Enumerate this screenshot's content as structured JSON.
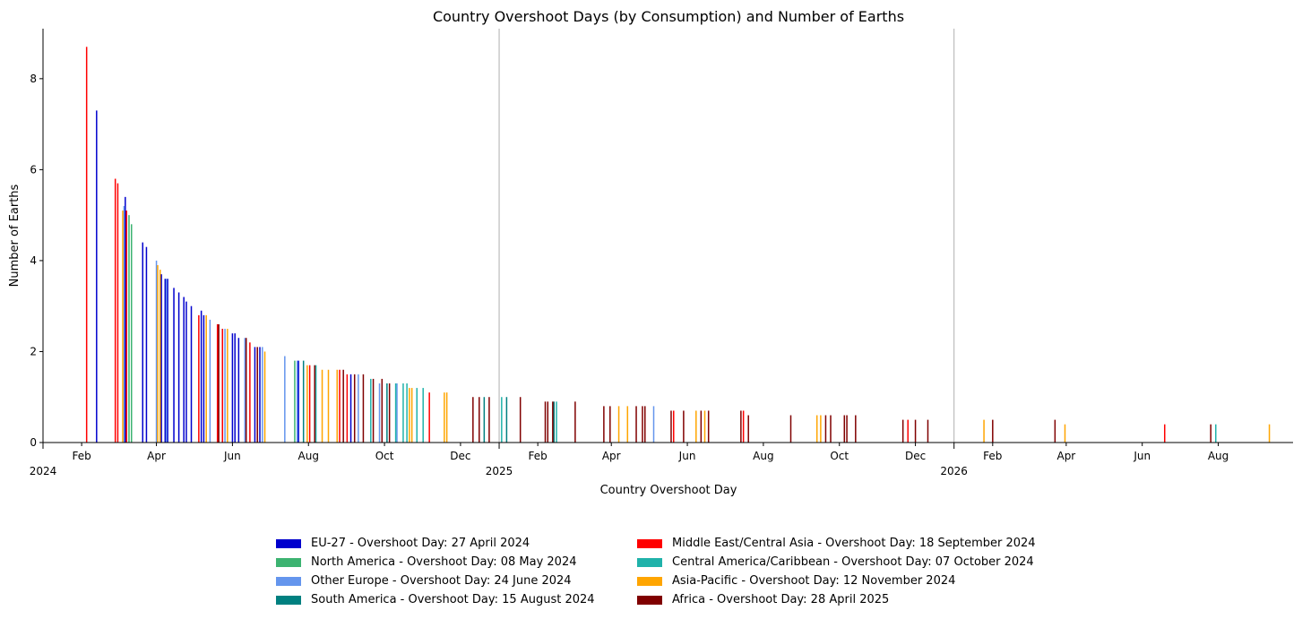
{
  "chart_data": {
    "type": "bar",
    "title": "Country Overshoot Days (by Consumption) and Number of Earths",
    "xlabel": "Country Overshoot Day",
    "ylabel": "Number of Earths",
    "xlim": [
      "2024-01-01",
      "2026-09-30"
    ],
    "ylim": [
      0,
      9.1
    ],
    "y_ticks": [
      0,
      2,
      4,
      6,
      8
    ],
    "x_ticks": [
      {
        "date": "2024-02-01",
        "label": "Feb"
      },
      {
        "date": "2024-04-01",
        "label": "Apr"
      },
      {
        "date": "2024-06-01",
        "label": "Jun"
      },
      {
        "date": "2024-08-01",
        "label": "Aug"
      },
      {
        "date": "2024-10-01",
        "label": "Oct"
      },
      {
        "date": "2024-12-01",
        "label": "Dec"
      },
      {
        "date": "2025-02-01",
        "label": "Feb"
      },
      {
        "date": "2025-04-01",
        "label": "Apr"
      },
      {
        "date": "2025-06-01",
        "label": "Jun"
      },
      {
        "date": "2025-08-01",
        "label": "Aug"
      },
      {
        "date": "2025-10-01",
        "label": "Oct"
      },
      {
        "date": "2025-12-01",
        "label": "Dec"
      },
      {
        "date": "2026-02-01",
        "label": "Feb"
      },
      {
        "date": "2026-04-01",
        "label": "Apr"
      },
      {
        "date": "2026-06-01",
        "label": "Jun"
      },
      {
        "date": "2026-08-01",
        "label": "Aug"
      }
    ],
    "year_labels": [
      {
        "date": "2024-01-01",
        "label": "2024"
      },
      {
        "date": "2025-01-01",
        "label": "2025"
      },
      {
        "date": "2026-01-01",
        "label": "2026"
      }
    ],
    "year_lines": [
      "2025-01-01",
      "2026-01-01"
    ],
    "legend_placement": "bottom-center",
    "series": [
      {
        "name": "EU-27 - Overshoot Day: 27 April 2024",
        "color": "#0000cd",
        "points": [
          {
            "x": "2024-02-13",
            "y": 7.3
          },
          {
            "x": "2024-03-07",
            "y": 5.4
          },
          {
            "x": "2024-03-21",
            "y": 4.4
          },
          {
            "x": "2024-03-24",
            "y": 4.3
          },
          {
            "x": "2024-04-05",
            "y": 3.7
          },
          {
            "x": "2024-04-08",
            "y": 3.6
          },
          {
            "x": "2024-04-10",
            "y": 3.6
          },
          {
            "x": "2024-04-15",
            "y": 3.4
          },
          {
            "x": "2024-04-19",
            "y": 3.3
          },
          {
            "x": "2024-04-23",
            "y": 3.2
          },
          {
            "x": "2024-04-25",
            "y": 3.1
          },
          {
            "x": "2024-04-29",
            "y": 3.0
          },
          {
            "x": "2024-05-07",
            "y": 2.9
          },
          {
            "x": "2024-05-09",
            "y": 2.8
          },
          {
            "x": "2024-05-20",
            "y": 2.6
          },
          {
            "x": "2024-05-24",
            "y": 2.5
          },
          {
            "x": "2024-06-01",
            "y": 2.4
          },
          {
            "x": "2024-06-03",
            "y": 2.4
          },
          {
            "x": "2024-06-06",
            "y": 2.3
          },
          {
            "x": "2024-06-19",
            "y": 2.1
          },
          {
            "x": "2024-06-23",
            "y": 2.1
          },
          {
            "x": "2024-07-24",
            "y": 1.8
          },
          {
            "x": "2024-09-04",
            "y": 1.5
          }
        ]
      },
      {
        "name": "North America - Overshoot Day: 08 May 2024",
        "color": "#3cb371",
        "points": [
          {
            "x": "2024-03-10",
            "y": 5.0
          },
          {
            "x": "2024-03-12",
            "y": 4.8
          },
          {
            "x": "2024-07-21",
            "y": 1.8
          }
        ]
      },
      {
        "name": "Other Europe - Overshoot Day: 24 June 2024",
        "color": "#6495ed",
        "points": [
          {
            "x": "2024-03-06",
            "y": 5.2
          },
          {
            "x": "2024-04-01",
            "y": 4.0
          },
          {
            "x": "2024-04-09",
            "y": 3.6
          },
          {
            "x": "2024-05-14",
            "y": 2.7
          },
          {
            "x": "2024-05-26",
            "y": 2.5
          },
          {
            "x": "2024-06-11",
            "y": 2.3
          },
          {
            "x": "2024-06-25",
            "y": 2.1
          },
          {
            "x": "2024-07-13",
            "y": 1.9
          },
          {
            "x": "2024-07-23",
            "y": 1.8
          },
          {
            "x": "2024-09-10",
            "y": 1.5
          },
          {
            "x": "2024-09-27",
            "y": 1.3
          },
          {
            "x": "2024-10-11",
            "y": 1.3
          },
          {
            "x": "2025-05-05",
            "y": 0.8
          }
        ]
      },
      {
        "name": "South America - Overshoot Day: 15 August 2024",
        "color": "#008080",
        "points": [
          {
            "x": "2024-07-28",
            "y": 1.8
          },
          {
            "x": "2024-10-03",
            "y": 1.3
          },
          {
            "x": "2024-12-20",
            "y": 1.0
          },
          {
            "x": "2025-01-07",
            "y": 1.0
          },
          {
            "x": "2025-02-14",
            "y": 0.9
          }
        ]
      },
      {
        "name": "Middle East/Central Asia - Overshoot Day: 18 September 2024",
        "color": "#ff0000",
        "points": [
          {
            "x": "2024-02-05",
            "y": 8.7
          },
          {
            "x": "2024-02-28",
            "y": 5.8
          },
          {
            "x": "2024-03-01",
            "y": 5.7
          },
          {
            "x": "2024-03-08",
            "y": 5.1
          },
          {
            "x": "2024-05-05",
            "y": 2.8
          },
          {
            "x": "2024-05-20",
            "y": 2.6
          },
          {
            "x": "2024-05-24",
            "y": 2.5
          },
          {
            "x": "2024-06-15",
            "y": 2.2
          },
          {
            "x": "2024-08-02",
            "y": 1.7
          },
          {
            "x": "2024-08-26",
            "y": 1.6
          },
          {
            "x": "2024-09-01",
            "y": 1.5
          },
          {
            "x": "2024-11-06",
            "y": 1.1
          },
          {
            "x": "2025-05-21",
            "y": 0.7
          },
          {
            "x": "2025-07-16",
            "y": 0.7
          },
          {
            "x": "2025-11-25",
            "y": 0.5
          },
          {
            "x": "2026-06-19",
            "y": 0.4
          }
        ]
      },
      {
        "name": "Central America/Caribbean - Overshoot Day: 07 October 2024",
        "color": "#20b2aa",
        "points": [
          {
            "x": "2024-08-07",
            "y": 1.7
          },
          {
            "x": "2024-09-20",
            "y": 1.4
          },
          {
            "x": "2024-10-10",
            "y": 1.3
          },
          {
            "x": "2024-10-16",
            "y": 1.3
          },
          {
            "x": "2024-10-19",
            "y": 1.3
          },
          {
            "x": "2024-10-27",
            "y": 1.2
          },
          {
            "x": "2024-11-01",
            "y": 1.2
          },
          {
            "x": "2025-01-03",
            "y": 1.0
          },
          {
            "x": "2025-02-16",
            "y": 0.9
          },
          {
            "x": "2026-07-30",
            "y": 0.4
          }
        ]
      },
      {
        "name": "Asia-Pacific - Overshoot Day: 12 November 2024",
        "color": "#ffa500",
        "points": [
          {
            "x": "2024-03-05",
            "y": 5.1
          },
          {
            "x": "2024-04-02",
            "y": 3.9
          },
          {
            "x": "2024-04-04",
            "y": 3.8
          },
          {
            "x": "2024-05-11",
            "y": 2.8
          },
          {
            "x": "2024-05-28",
            "y": 2.5
          },
          {
            "x": "2024-06-27",
            "y": 2.0
          },
          {
            "x": "2024-07-31",
            "y": 1.7
          },
          {
            "x": "2024-08-12",
            "y": 1.6
          },
          {
            "x": "2024-08-17",
            "y": 1.6
          },
          {
            "x": "2024-08-24",
            "y": 1.6
          },
          {
            "x": "2024-10-21",
            "y": 1.2
          },
          {
            "x": "2024-10-23",
            "y": 1.2
          },
          {
            "x": "2024-11-18",
            "y": 1.1
          },
          {
            "x": "2024-11-20",
            "y": 1.1
          },
          {
            "x": "2025-04-07",
            "y": 0.8
          },
          {
            "x": "2025-04-14",
            "y": 0.8
          },
          {
            "x": "2025-06-08",
            "y": 0.7
          },
          {
            "x": "2025-06-15",
            "y": 0.7
          },
          {
            "x": "2025-09-13",
            "y": 0.6
          },
          {
            "x": "2025-09-16",
            "y": 0.6
          },
          {
            "x": "2026-01-25",
            "y": 0.5
          },
          {
            "x": "2026-03-31",
            "y": 0.4
          },
          {
            "x": "2026-09-11",
            "y": 0.4
          }
        ]
      },
      {
        "name": "Africa - Overshoot Day: 28 April 2025",
        "color": "#800000",
        "points": [
          {
            "x": "2024-05-21",
            "y": 2.6
          },
          {
            "x": "2024-06-12",
            "y": 2.3
          },
          {
            "x": "2024-06-21",
            "y": 2.1
          },
          {
            "x": "2024-08-06",
            "y": 1.7
          },
          {
            "x": "2024-08-29",
            "y": 1.6
          },
          {
            "x": "2024-09-07",
            "y": 1.5
          },
          {
            "x": "2024-09-14",
            "y": 1.5
          },
          {
            "x": "2024-09-22",
            "y": 1.4
          },
          {
            "x": "2024-09-29",
            "y": 1.4
          },
          {
            "x": "2024-10-05",
            "y": 1.3
          },
          {
            "x": "2024-12-11",
            "y": 1.0
          },
          {
            "x": "2024-12-16",
            "y": 1.0
          },
          {
            "x": "2024-12-24",
            "y": 1.0
          },
          {
            "x": "2025-01-18",
            "y": 1.0
          },
          {
            "x": "2025-02-07",
            "y": 0.9
          },
          {
            "x": "2025-02-09",
            "y": 0.9
          },
          {
            "x": "2025-02-13",
            "y": 0.9
          },
          {
            "x": "2025-03-03",
            "y": 0.9
          },
          {
            "x": "2025-03-26",
            "y": 0.8
          },
          {
            "x": "2025-03-31",
            "y": 0.8
          },
          {
            "x": "2025-04-21",
            "y": 0.8
          },
          {
            "x": "2025-04-26",
            "y": 0.8
          },
          {
            "x": "2025-04-28",
            "y": 0.8
          },
          {
            "x": "2025-05-19",
            "y": 0.7
          },
          {
            "x": "2025-05-29",
            "y": 0.7
          },
          {
            "x": "2025-06-12",
            "y": 0.7
          },
          {
            "x": "2025-06-18",
            "y": 0.7
          },
          {
            "x": "2025-07-14",
            "y": 0.7
          },
          {
            "x": "2025-07-20",
            "y": 0.6
          },
          {
            "x": "2025-08-23",
            "y": 0.6
          },
          {
            "x": "2025-09-20",
            "y": 0.6
          },
          {
            "x": "2025-09-24",
            "y": 0.6
          },
          {
            "x": "2025-10-05",
            "y": 0.6
          },
          {
            "x": "2025-10-07",
            "y": 0.6
          },
          {
            "x": "2025-10-14",
            "y": 0.6
          },
          {
            "x": "2025-11-21",
            "y": 0.5
          },
          {
            "x": "2025-12-01",
            "y": 0.5
          },
          {
            "x": "2025-12-11",
            "y": 0.5
          },
          {
            "x": "2026-02-01",
            "y": 0.5
          },
          {
            "x": "2026-03-23",
            "y": 0.5
          },
          {
            "x": "2026-07-26",
            "y": 0.4
          }
        ]
      }
    ]
  }
}
